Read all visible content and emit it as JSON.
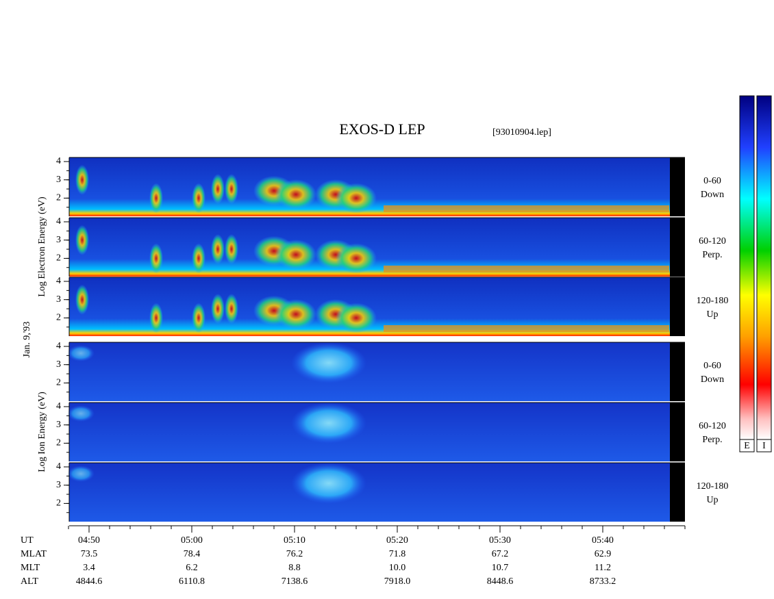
{
  "title": "EXOS-D LEP",
  "file": "[93010904.lep]",
  "date": "Jan. 9,'93",
  "groups": [
    {
      "label": "Log  Electron  Energy (eV)",
      "panels": [
        {
          "angle": "0-60",
          "direction": "Down",
          "yticks": [
            2,
            3,
            4
          ]
        },
        {
          "angle": "60-120",
          "direction": "Perp.",
          "yticks": [
            2,
            3,
            4
          ]
        },
        {
          "angle": "120-180",
          "direction": "Up",
          "yticks": [
            2,
            3,
            4
          ]
        }
      ]
    },
    {
      "label": "Log  Ion  Energy (eV)",
      "panels": [
        {
          "angle": "0-60",
          "direction": "Down",
          "yticks": [
            2,
            3,
            4
          ]
        },
        {
          "angle": "60-120",
          "direction": "Perp.",
          "yticks": [
            2,
            3,
            4
          ]
        },
        {
          "angle": "120-180",
          "direction": "Up",
          "yticks": [
            2,
            3,
            4
          ]
        }
      ]
    }
  ],
  "time_axis": {
    "rows": [
      {
        "name": "UT",
        "values": [
          "04:50",
          "05:00",
          "05:10",
          "05:20",
          "05:30",
          "05:40"
        ]
      },
      {
        "name": "MLAT",
        "values": [
          "73.5",
          "78.4",
          "76.2",
          "71.8",
          "67.2",
          "62.9"
        ]
      },
      {
        "name": "MLT",
        "values": [
          "3.4",
          "6.2",
          "8.8",
          "10.0",
          "10.7",
          "11.2"
        ]
      },
      {
        "name": "ALT",
        "values": [
          "4844.6",
          "6110.8",
          "7138.6",
          "7918.0",
          "8448.6",
          "8733.2"
        ]
      }
    ]
  },
  "colorbars": [
    "E",
    "I"
  ]
}
